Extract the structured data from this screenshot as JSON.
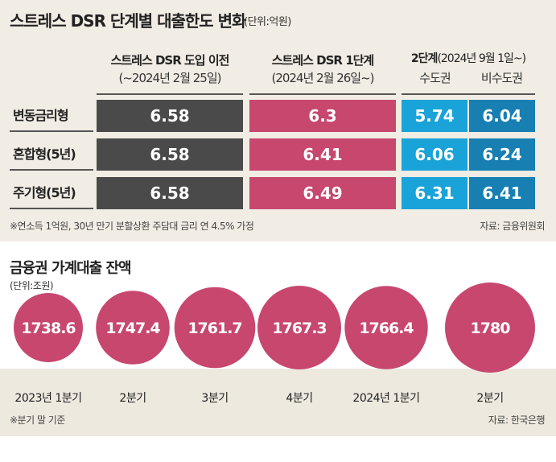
{
  "chart_data": [
    {
      "type": "table",
      "title": "스트레스 DSR 단계별 대출한도 변화",
      "unit": "(단위:억원)",
      "columns": [
        {
          "label": "스트레스 DSR 도입 이전",
          "sub": "(~2024년 2월 25일)"
        },
        {
          "label": "스트레스 DSR 1단계",
          "sub": "(2024년 2월 26일~)"
        },
        {
          "label": "2단계",
          "sub": "(2024년 9월 1일~)",
          "subcols": [
            "수도권",
            "비수도권"
          ]
        }
      ],
      "rows": [
        {
          "label": "변동금리형",
          "values": [
            "6.58",
            "6.3",
            "5.74",
            "6.04"
          ]
        },
        {
          "label": "혼합형(5년)",
          "values": [
            "6.58",
            "6.41",
            "6.06",
            "6.24"
          ]
        },
        {
          "label": "주기형(5년)",
          "values": [
            "6.58",
            "6.49",
            "6.31",
            "6.41"
          ]
        }
      ],
      "footnote": "※연소득 1억원, 30년 만기 분할상환 주담대 금리 연 4.5% 가정",
      "source": "자료: 금융위원회",
      "colors": {
        "before": "#4a4a4a",
        "stage1": "#c7476f",
        "stage2_capital": "#1aa3d8",
        "stage2_noncapital": "#187fb2"
      }
    },
    {
      "type": "bubble",
      "title": "금융권 가계대출 잔액",
      "unit": "(단위:조원)",
      "categories": [
        "2023년 1분기",
        "2분기",
        "3분기",
        "4분기",
        "2024년 1분기",
        "2분기"
      ],
      "values": [
        1738.6,
        1747.4,
        1761.7,
        1767.3,
        1766.4,
        1780
      ],
      "value_labels": [
        "1738.6",
        "1747.4",
        "1761.7",
        "1767.3",
        "1766.4",
        "1780"
      ],
      "footnote": "※분기 말 기준",
      "source": "자료: 한국은행",
      "color": "#c7476f"
    }
  ]
}
